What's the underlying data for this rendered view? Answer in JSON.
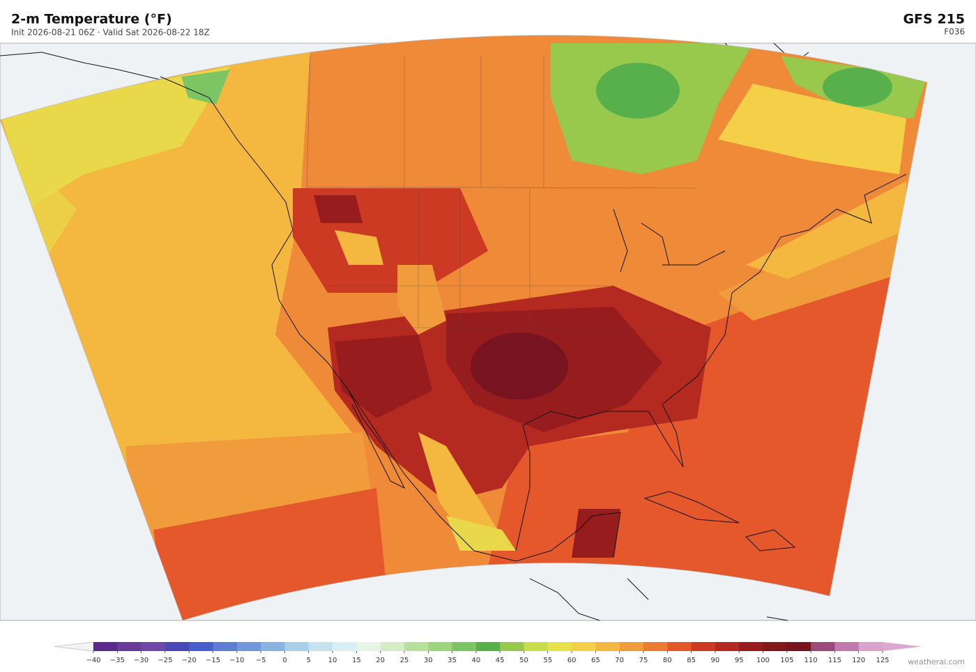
{
  "header": {
    "title": "2-m Temperature  (°F)",
    "subtitle": "Init 2026-08-21 06Z   ·   Valid Sat 2026-08-22 18Z",
    "model": "GFS  215",
    "forecast_hour": "F036"
  },
  "colorbar": {
    "ticks": [
      {
        "value": -40,
        "label": "−40"
      },
      {
        "value": -35,
        "label": "−35"
      },
      {
        "value": -30,
        "label": "−30"
      },
      {
        "value": -25,
        "label": "−25"
      },
      {
        "value": -20,
        "label": "−20"
      },
      {
        "value": -15,
        "label": "−15"
      },
      {
        "value": -10,
        "label": "−10"
      },
      {
        "value": -5,
        "label": "−5"
      },
      0,
      5,
      10,
      15,
      20,
      25,
      30,
      35,
      40,
      45,
      50,
      55,
      60,
      65,
      70,
      75,
      80,
      85,
      90,
      95,
      100,
      105,
      110,
      115,
      120,
      125
    ],
    "colors": [
      "#5c2a8c",
      "#6a3a9a",
      "#7048a8",
      "#4a48b8",
      "#4a5fcc",
      "#5c7fd4",
      "#7298dc",
      "#8ab4e0",
      "#a8d0ea",
      "#c4e2f0",
      "#daeff5",
      "#e6f5e8",
      "#d4edc4",
      "#b8e09c",
      "#9ed47e",
      "#7cc464",
      "#58b04c",
      "#98c84c",
      "#c8dc4c",
      "#e8e24a",
      "#f4d048",
      "#f4b840",
      "#f09c3c",
      "#ec7c34",
      "#e4582c",
      "#cc3a24",
      "#b42a20",
      "#961c1e",
      "#821818",
      "#781420",
      "#9c4a7c",
      "#c07ab0",
      "#d8a4cc"
    ],
    "under_color": "#f4f4f6",
    "over_color": "#dca8d0"
  },
  "footer": {
    "credit": "weatherai.com"
  }
}
